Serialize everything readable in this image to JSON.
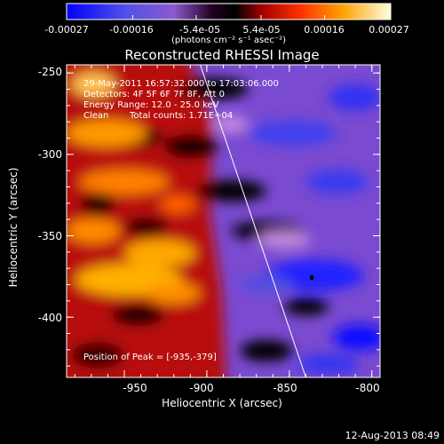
{
  "chart_data": {
    "type": "heatmap",
    "title": "Reconstructed RHESSI Image",
    "xlabel": "Heliocentric X (arcsec)",
    "ylabel": "Heliocentric Y (arcsec)",
    "xlim": [
      -985,
      -795
    ],
    "ylim": [
      -437,
      -245
    ],
    "xticks": [
      -950,
      -900,
      -850,
      -800
    ],
    "yticks": [
      -250,
      -300,
      -350,
      -400
    ],
    "colorbar": {
      "ticks": [
        "-0.00027",
        "-0.00016",
        "-5.4e-05",
        "5.4e-05",
        "0.00016",
        "0.00027"
      ],
      "tick_values": [
        -0.00027,
        -0.00016,
        -5.4e-05,
        5.4e-05,
        0.00016,
        0.00027
      ],
      "units_label": "(photons cm⁻² s⁻¹ asec⁻²)",
      "colors": [
        "#0000ff",
        "#7b4bd8",
        "#000000",
        "#d40000",
        "#ff8a00",
        "#ffffb0"
      ]
    },
    "annotations": {
      "time_range": "29-May-2011 16:57:32.000 to 17:03:06.000",
      "detectors": "Detectors: 4F 5F 6F 7F 8F, Att 0",
      "energy_range": "Energy Range: 12.0 - 25.0 keV",
      "clean": "Clean",
      "total_counts": "Total counts: 1.71E+04",
      "peak": "Position of Peak = [-935,-379]"
    },
    "peak_position": [
      -935,
      -379
    ],
    "limb_line": [
      [
        -904,
        -245
      ],
      [
        -840,
        -437
      ]
    ],
    "footer": "12-Aug-2013 08:49"
  }
}
